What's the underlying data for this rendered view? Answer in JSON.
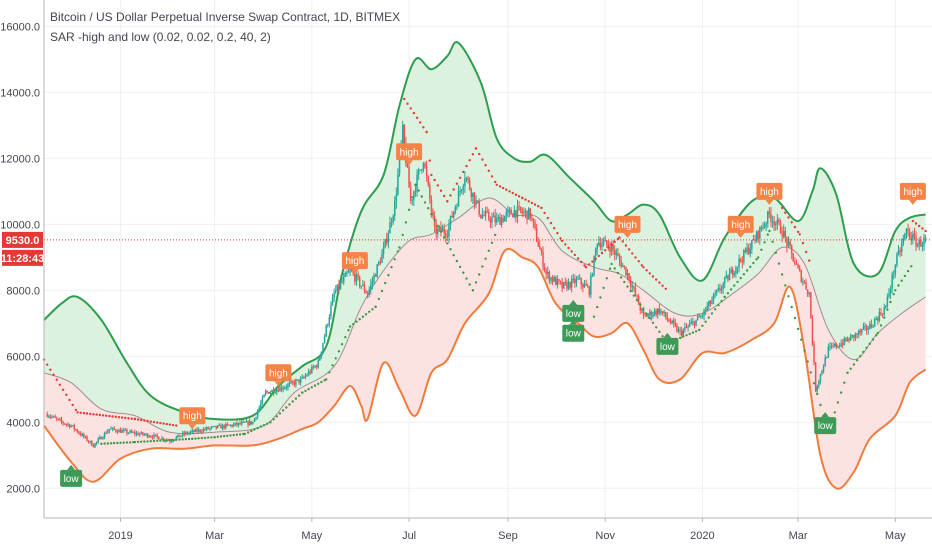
{
  "header": {
    "title": "Bitcoin / US Dollar Perpetual Inverse Swap Contract, 1D, BITMEX",
    "indicator": "SAR -high and low (0.02, 0.02, 0.2, 40, 2)"
  },
  "price_tag": {
    "price": "9530.0",
    "countdown": "11:28:43"
  },
  "colors": {
    "up": "#26a69a",
    "down": "#ef5350",
    "upper_band": "#2e9d4f",
    "lower_band": "#f07c3c",
    "high_tag": "#f58345",
    "low_tag": "#3d9a57",
    "green_fill": "#dcf2df",
    "red_fill": "#fde2e2",
    "sar_up": "#3a9b43",
    "sar_down": "#e53935",
    "price_line": "#e53935"
  },
  "chart_data": {
    "type": "candlestick",
    "ylim": [
      1100,
      16800
    ],
    "yticks": [
      2000,
      4000,
      6000,
      8000,
      10000,
      12000,
      14000,
      16000
    ],
    "ytick_labels": [
      "2000.0",
      "4000.0",
      "6000.0",
      "8000.0",
      "10000.0",
      "12000.0",
      "14000.0",
      "16000.0"
    ],
    "xlim": [
      "2018-11-14",
      "2020-05-24"
    ],
    "xticks": [
      {
        "date": "2019-01-01",
        "label": "2019"
      },
      {
        "date": "2019-03-01",
        "label": "Mar"
      },
      {
        "date": "2019-05-01",
        "label": "May"
      },
      {
        "date": "2019-07-01",
        "label": "Jul"
      },
      {
        "date": "2019-09-01",
        "label": "Sep"
      },
      {
        "date": "2019-11-01",
        "label": "Nov"
      },
      {
        "date": "2020-01-01",
        "label": "2020"
      },
      {
        "date": "2020-03-01",
        "label": "Mar"
      },
      {
        "date": "2020-05-01",
        "label": "May"
      }
    ],
    "price_line": 9530,
    "close": [
      [
        "2018-11-14",
        4300
      ],
      [
        "2018-11-25",
        4000
      ],
      [
        "2018-12-01",
        3900
      ],
      [
        "2018-12-15",
        3300
      ],
      [
        "2018-12-25",
        3800
      ],
      [
        "2019-01-05",
        3700
      ],
      [
        "2019-01-20",
        3600
      ],
      [
        "2019-02-01",
        3450
      ],
      [
        "2019-02-10",
        3650
      ],
      [
        "2019-02-24",
        3800
      ],
      [
        "2019-03-10",
        3900
      ],
      [
        "2019-03-25",
        4000
      ],
      [
        "2019-04-02",
        4900
      ],
      [
        "2019-04-15",
        5100
      ],
      [
        "2019-04-25",
        5300
      ],
      [
        "2019-05-05",
        5800
      ],
      [
        "2019-05-15",
        7900
      ],
      [
        "2019-05-25",
        8600
      ],
      [
        "2019-06-05",
        7900
      ],
      [
        "2019-06-15",
        9200
      ],
      [
        "2019-06-22",
        10600
      ],
      [
        "2019-06-27",
        12800
      ],
      [
        "2019-07-02",
        10700
      ],
      [
        "2019-07-10",
        12000
      ],
      [
        "2019-07-17",
        9800
      ],
      [
        "2019-07-25",
        9800
      ],
      [
        "2019-08-05",
        11500
      ],
      [
        "2019-08-15",
        10300
      ],
      [
        "2019-08-25",
        10100
      ],
      [
        "2019-09-05",
        10400
      ],
      [
        "2019-09-15",
        10300
      ],
      [
        "2019-09-25",
        8500
      ],
      [
        "2019-10-05",
        8100
      ],
      [
        "2019-10-15",
        8300
      ],
      [
        "2019-10-22",
        8000
      ],
      [
        "2019-10-27",
        9500
      ],
      [
        "2019-11-05",
        9300
      ],
      [
        "2019-11-15",
        8500
      ],
      [
        "2019-11-25",
        7200
      ],
      [
        "2019-12-05",
        7400
      ],
      [
        "2019-12-18",
        6700
      ],
      [
        "2019-12-31",
        7200
      ],
      [
        "2020-01-10",
        7900
      ],
      [
        "2020-01-20",
        8600
      ],
      [
        "2020-02-01",
        9400
      ],
      [
        "2020-02-12",
        10300
      ],
      [
        "2020-02-20",
        9800
      ],
      [
        "2020-03-01",
        8600
      ],
      [
        "2020-03-08",
        7900
      ],
      [
        "2020-03-12",
        5000
      ],
      [
        "2020-03-20",
        6200
      ],
      [
        "2020-04-01",
        6500
      ],
      [
        "2020-04-15",
        6900
      ],
      [
        "2020-04-25",
        7500
      ],
      [
        "2020-05-01",
        8800
      ],
      [
        "2020-05-08",
        9800
      ],
      [
        "2020-05-15",
        9400
      ],
      [
        "2020-05-20",
        9530
      ]
    ],
    "upper_band": [
      [
        "2018-11-14",
        7100
      ],
      [
        "2018-11-25",
        7600
      ],
      [
        "2018-12-05",
        7800
      ],
      [
        "2018-12-20",
        7100
      ],
      [
        "2019-01-05",
        5800
      ],
      [
        "2019-01-20",
        4800
      ],
      [
        "2019-02-10",
        4300
      ],
      [
        "2019-03-01",
        4100
      ],
      [
        "2019-03-25",
        4200
      ],
      [
        "2019-04-10",
        5100
      ],
      [
        "2019-04-25",
        5700
      ],
      [
        "2019-05-10",
        6300
      ],
      [
        "2019-05-20",
        8500
      ],
      [
        "2019-06-01",
        10400
      ],
      [
        "2019-06-15",
        11500
      ],
      [
        "2019-06-25",
        13600
      ],
      [
        "2019-07-05",
        15000
      ],
      [
        "2019-07-15",
        14700
      ],
      [
        "2019-07-25",
        15100
      ],
      [
        "2019-08-01",
        15500
      ],
      [
        "2019-08-15",
        14300
      ],
      [
        "2019-08-25",
        12600
      ],
      [
        "2019-09-05",
        12000
      ],
      [
        "2019-09-15",
        11900
      ],
      [
        "2019-09-25",
        12100
      ],
      [
        "2019-10-10",
        11400
      ],
      [
        "2019-10-25",
        10700
      ],
      [
        "2019-11-05",
        10100
      ],
      [
        "2019-11-15",
        10300
      ],
      [
        "2019-11-25",
        10600
      ],
      [
        "2019-12-05",
        10300
      ],
      [
        "2019-12-18",
        9000
      ],
      [
        "2020-01-01",
        8300
      ],
      [
        "2020-01-15",
        9600
      ],
      [
        "2020-02-01",
        10700
      ],
      [
        "2020-02-15",
        10800
      ],
      [
        "2020-03-01",
        10100
      ],
      [
        "2020-03-10",
        11000
      ],
      [
        "2020-03-15",
        11700
      ],
      [
        "2020-03-25",
        10900
      ],
      [
        "2020-04-05",
        8800
      ],
      [
        "2020-04-20",
        8500
      ],
      [
        "2020-05-01",
        9800
      ],
      [
        "2020-05-10",
        10200
      ],
      [
        "2020-05-20",
        10300
      ]
    ],
    "lower_band": [
      [
        "2018-11-14",
        3900
      ],
      [
        "2018-12-01",
        2800
      ],
      [
        "2018-12-15",
        2200
      ],
      [
        "2019-01-01",
        2900
      ],
      [
        "2019-01-20",
        3200
      ],
      [
        "2019-02-10",
        3200
      ],
      [
        "2019-03-01",
        3300
      ],
      [
        "2019-03-25",
        3300
      ],
      [
        "2019-04-10",
        3500
      ],
      [
        "2019-04-25",
        3800
      ],
      [
        "2019-05-05",
        4000
      ],
      [
        "2019-05-15",
        4500
      ],
      [
        "2019-05-25",
        5100
      ],
      [
        "2019-06-01",
        4500
      ],
      [
        "2019-06-05",
        4100
      ],
      [
        "2019-06-15",
        5800
      ],
      [
        "2019-06-25",
        5000
      ],
      [
        "2019-07-05",
        4200
      ],
      [
        "2019-07-15",
        5500
      ],
      [
        "2019-07-25",
        5900
      ],
      [
        "2019-08-05",
        7000
      ],
      [
        "2019-08-20",
        7900
      ],
      [
        "2019-08-30",
        9200
      ],
      [
        "2019-09-10",
        9000
      ],
      [
        "2019-09-20",
        8700
      ],
      [
        "2019-10-01",
        7600
      ],
      [
        "2019-10-15",
        7000
      ],
      [
        "2019-10-25",
        6600
      ],
      [
        "2019-11-05",
        6700
      ],
      [
        "2019-11-15",
        7000
      ],
      [
        "2019-11-25",
        6200
      ],
      [
        "2019-12-05",
        5300
      ],
      [
        "2019-12-18",
        5300
      ],
      [
        "2020-01-01",
        6100
      ],
      [
        "2020-01-15",
        6100
      ],
      [
        "2020-02-01",
        6500
      ],
      [
        "2020-02-15",
        7000
      ],
      [
        "2020-02-25",
        8100
      ],
      [
        "2020-03-05",
        6200
      ],
      [
        "2020-03-15",
        3000
      ],
      [
        "2020-03-25",
        2000
      ],
      [
        "2020-04-05",
        2500
      ],
      [
        "2020-04-15",
        3500
      ],
      [
        "2020-05-01",
        4200
      ],
      [
        "2020-05-10",
        5200
      ],
      [
        "2020-05-20",
        5600
      ]
    ],
    "middle_band": [
      [
        "2018-11-14",
        5500
      ],
      [
        "2018-12-01",
        5200
      ],
      [
        "2018-12-20",
        4400
      ],
      [
        "2019-01-10",
        4200
      ],
      [
        "2019-02-01",
        3700
      ],
      [
        "2019-03-01",
        3700
      ],
      [
        "2019-04-01",
        3900
      ],
      [
        "2019-04-20",
        4900
      ],
      [
        "2019-05-15",
        5700
      ],
      [
        "2019-06-01",
        7500
      ],
      [
        "2019-06-15",
        8600
      ],
      [
        "2019-07-01",
        9500
      ],
      [
        "2019-07-15",
        9700
      ],
      [
        "2019-08-01",
        10200
      ],
      [
        "2019-08-20",
        10800
      ],
      [
        "2019-09-05",
        10300
      ],
      [
        "2019-09-20",
        10200
      ],
      [
        "2019-10-05",
        9200
      ],
      [
        "2019-10-25",
        8700
      ],
      [
        "2019-11-10",
        8500
      ],
      [
        "2019-11-25",
        8000
      ],
      [
        "2019-12-15",
        7300
      ],
      [
        "2020-01-01",
        7300
      ],
      [
        "2020-01-20",
        7900
      ],
      [
        "2020-02-05",
        8500
      ],
      [
        "2020-02-20",
        9300
      ],
      [
        "2020-03-05",
        8800
      ],
      [
        "2020-03-20",
        6800
      ],
      [
        "2020-04-05",
        5900
      ],
      [
        "2020-04-20",
        6700
      ],
      [
        "2020-05-05",
        7300
      ],
      [
        "2020-05-20",
        7800
      ]
    ],
    "sar_up": [
      [
        "2018-12-20",
        3350
      ],
      [
        "2019-01-10",
        3400
      ],
      [
        "2019-02-15",
        3500
      ],
      [
        "2019-03-01",
        3550
      ],
      [
        "2019-03-20",
        3650
      ],
      [
        "2019-04-05",
        4000
      ],
      [
        "2019-04-25",
        4900
      ],
      [
        "2019-05-10",
        5300
      ],
      [
        "2019-05-25",
        6900
      ],
      [
        "2019-06-10",
        7500
      ],
      [
        "2019-06-25",
        9300
      ],
      [
        "2019-07-05",
        11200
      ],
      [
        "2019-08-10",
        8000
      ],
      [
        "2019-08-25",
        9800
      ],
      [
        "2019-10-25",
        7200
      ],
      [
        "2019-11-05",
        8800
      ],
      [
        "2019-12-10",
        6400
      ],
      [
        "2019-12-30",
        6800
      ],
      [
        "2020-01-15",
        7800
      ],
      [
        "2020-02-05",
        9000
      ],
      [
        "2020-02-12",
        9800
      ],
      [
        "2020-03-20",
        3700
      ],
      [
        "2020-04-01",
        5500
      ],
      [
        "2020-04-20",
        6700
      ],
      [
        "2020-05-01",
        8000
      ],
      [
        "2020-05-12",
        8800
      ]
    ],
    "sar_down": [
      [
        "2018-11-14",
        5900
      ],
      [
        "2018-12-05",
        4300
      ],
      [
        "2019-01-10",
        4100
      ],
      [
        "2019-02-05",
        3900
      ],
      [
        "2019-06-28",
        13800
      ],
      [
        "2019-07-12",
        12800
      ],
      [
        "2019-07-15",
        11500
      ],
      [
        "2019-07-25",
        10700
      ],
      [
        "2019-08-12",
        12300
      ],
      [
        "2019-08-25",
        11200
      ],
      [
        "2019-09-10",
        10800
      ],
      [
        "2019-09-22",
        10500
      ],
      [
        "2019-10-05",
        9500
      ],
      [
        "2019-10-20",
        8700
      ],
      [
        "2019-11-10",
        9600
      ],
      [
        "2019-11-25",
        8700
      ],
      [
        "2019-12-10",
        8000
      ],
      [
        "2020-02-20",
        10500
      ],
      [
        "2020-03-02",
        9700
      ],
      [
        "2020-03-08",
        8900
      ],
      [
        "2020-05-12",
        10100
      ],
      [
        "2020-05-20",
        9800
      ]
    ],
    "tags": [
      {
        "date": "2018-12-01",
        "value": 2300,
        "kind": "low",
        "text": "low"
      },
      {
        "date": "2019-02-15",
        "value": 4200,
        "kind": "high",
        "text": "high"
      },
      {
        "date": "2019-04-10",
        "value": 5500,
        "kind": "high",
        "text": "high"
      },
      {
        "date": "2019-05-28",
        "value": 8900,
        "kind": "high",
        "text": "high"
      },
      {
        "date": "2019-07-01",
        "value": 12200,
        "kind": "high",
        "text": "high"
      },
      {
        "date": "2019-10-12",
        "value": 7300,
        "kind": "low",
        "text": "low"
      },
      {
        "date": "2019-10-12",
        "value": 6700,
        "kind": "low",
        "text": "low"
      },
      {
        "date": "2019-11-15",
        "value": 10000,
        "kind": "high",
        "text": "high"
      },
      {
        "date": "2019-12-10",
        "value": 6300,
        "kind": "low",
        "text": "low"
      },
      {
        "date": "2020-01-25",
        "value": 10000,
        "kind": "high",
        "text": "high"
      },
      {
        "date": "2020-02-12",
        "value": 11000,
        "kind": "high",
        "text": "high"
      },
      {
        "date": "2020-03-18",
        "value": 3900,
        "kind": "low",
        "text": "low"
      },
      {
        "date": "2020-05-12",
        "value": 11000,
        "kind": "high",
        "text": "high"
      }
    ]
  }
}
